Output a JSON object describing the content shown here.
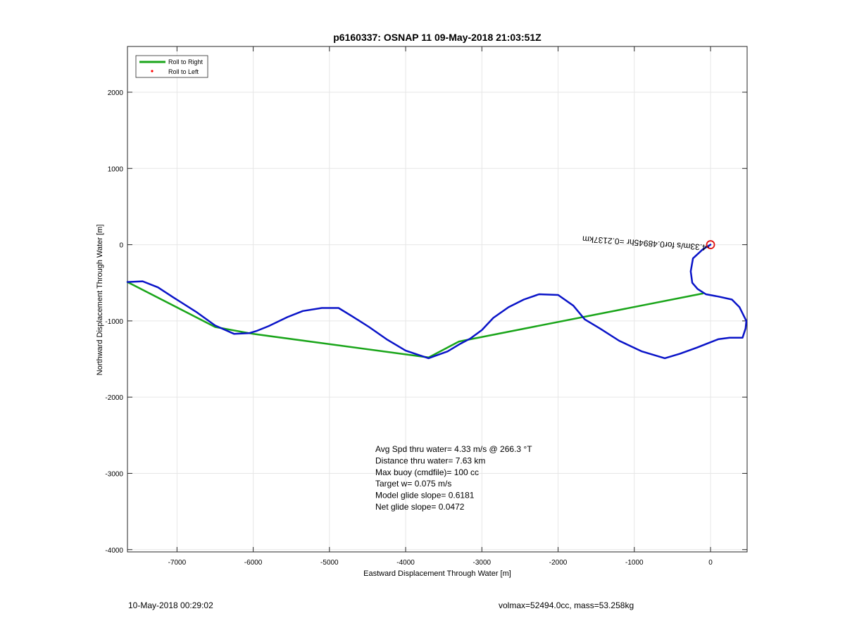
{
  "chart_data": {
    "type": "line",
    "title": "p6160337: OSNAP 11 09-May-2018 21:03:51Z",
    "xlabel": "Eastward Displacement Through Water [m]",
    "ylabel": "Northward Displacement Through Water [m]",
    "xlim": [
      -7650,
      480
    ],
    "ylim": [
      -4030,
      2600
    ],
    "xticks": [
      -7000,
      -6000,
      -5000,
      -4000,
      -3000,
      -2000,
      -1000,
      0
    ],
    "yticks": [
      -4000,
      -3000,
      -2000,
      -1000,
      0,
      1000,
      2000
    ],
    "grid": true,
    "legend_position": "top-left",
    "legend": [
      {
        "label": "Roll to Right",
        "color": "#1aa51a",
        "marker": "line"
      },
      {
        "label": "Roll to Left",
        "color": "#ff0000",
        "marker": "dot"
      }
    ],
    "series": [
      {
        "name": "Roll to Right",
        "color": "#1aa51a",
        "x": [
          -100,
          -3300,
          -3700,
          -6000,
          -6500,
          -7650
        ],
        "y": [
          -640,
          -1270,
          -1480,
          -1170,
          -1080,
          -490
        ]
      },
      {
        "color": "#0a14c8",
        "x": [
          0,
          -100,
          -230,
          -260,
          -240,
          -170,
          -60,
          100,
          280,
          380,
          470,
          460,
          420,
          250,
          100,
          0,
          -180,
          -400,
          -600,
          -900,
          -1200,
          -1450,
          -1650,
          -1800,
          -2000,
          -2250,
          -2450,
          -2650,
          -2850,
          -3000,
          -3150,
          -3300,
          -3450,
          -3700,
          -4000,
          -4250,
          -4480,
          -4700,
          -4880,
          -5100,
          -5350,
          -5550,
          -5800,
          -5950,
          -6050,
          -6250,
          -6500,
          -6750,
          -7050,
          -7250,
          -7450,
          -7650
        ],
        "y": [
          0,
          -60,
          -180,
          -350,
          -500,
          -580,
          -650,
          -680,
          -720,
          -820,
          -1000,
          -1100,
          -1220,
          -1220,
          -1240,
          -1280,
          -1350,
          -1430,
          -1490,
          -1400,
          -1260,
          -1100,
          -980,
          -800,
          -660,
          -650,
          -720,
          -820,
          -960,
          -1120,
          -1230,
          -1310,
          -1400,
          -1490,
          -1390,
          -1240,
          -1080,
          -940,
          -830,
          -830,
          -870,
          -950,
          -1070,
          -1130,
          -1160,
          -1170,
          -1060,
          -880,
          -690,
          -560,
          -480,
          -490
        ]
      }
    ],
    "markers": [
      {
        "type": "circle",
        "x": 0,
        "y": 0,
        "color": "#e01010"
      }
    ],
    "annotation_rotated": "-4.33m/s for0.48945hr =0.2137km",
    "annotation_text": [
      "Avg Spd thru water=  4.33 m/s @ 266.3 °T",
      "Distance thru water=  7.63 km",
      "Max buoy (cmdfile)= 100 cc",
      "Target w= 0.075 m/s",
      "Model glide slope= 0.6181",
      "Net glide slope= 0.0472"
    ]
  },
  "footer": {
    "left": "10-May-2018 00:29:02",
    "right": "volmax=52494.0cc, mass=53.258kg"
  }
}
